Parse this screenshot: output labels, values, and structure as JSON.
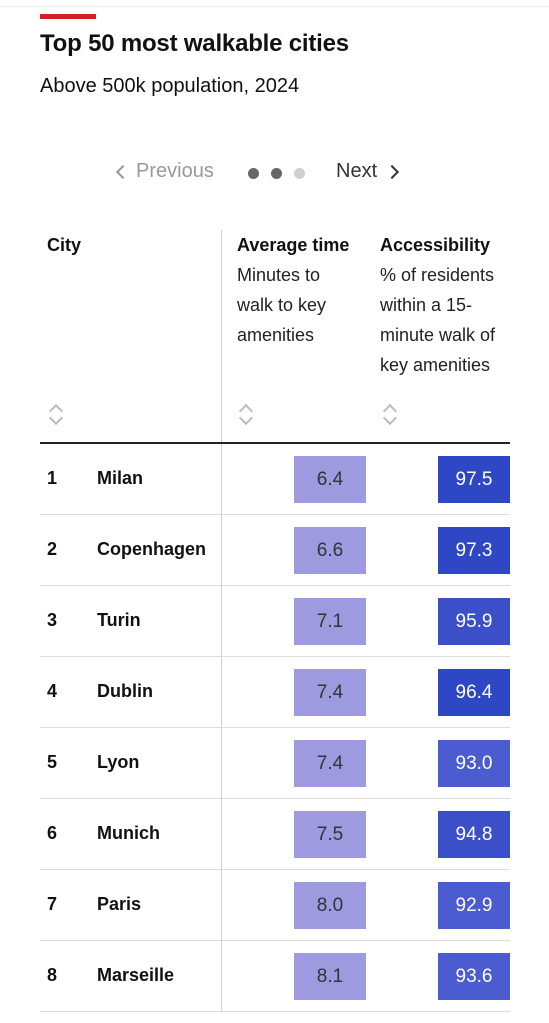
{
  "colors": {
    "accent": "#d81f26",
    "time_fill": "#9e9ae0",
    "acc_fill_high": "#2e47c4",
    "acc_fill_mid": "#3b4fc9",
    "acc_fill_low": "#4b5bd0"
  },
  "page": {
    "title": "Top 50 most walkable cities",
    "subtitle": "Above 500k population, 2024"
  },
  "pager": {
    "prev_label": "Previous",
    "next_label": "Next",
    "pages": 3,
    "current_page": 2
  },
  "icons": {
    "prev": "chevron-left-icon",
    "next": "chevron-right-icon",
    "sort": "sort-updown-icon"
  },
  "table": {
    "columns": [
      {
        "title": "City",
        "desc": []
      },
      {
        "title": "Average time",
        "desc": [
          "Minutes to",
          "walk to key",
          "amenities"
        ]
      },
      {
        "title": "Accessibility",
        "desc": [
          "% of residents",
          "within a 15-",
          "minute walk of",
          "key amenities"
        ]
      }
    ]
  },
  "chart_data": {
    "type": "table",
    "title": "Top 50 most walkable cities",
    "subtitle": "Above 500k population, 2024",
    "columns": [
      "City",
      "Average time",
      "Accessibility"
    ],
    "rows": [
      {
        "rank": "1",
        "city": "Milan",
        "time": "6.4",
        "access": "97.5"
      },
      {
        "rank": "2",
        "city": "Copenhagen",
        "time": "6.6",
        "access": "97.3"
      },
      {
        "rank": "3",
        "city": "Turin",
        "time": "7.1",
        "access": "95.9"
      },
      {
        "rank": "4",
        "city": "Dublin",
        "time": "7.4",
        "access": "96.4"
      },
      {
        "rank": "5",
        "city": "Lyon",
        "time": "7.4",
        "access": "93.0"
      },
      {
        "rank": "6",
        "city": "Munich",
        "time": "7.5",
        "access": "94.8"
      },
      {
        "rank": "7",
        "city": "Paris",
        "time": "8.0",
        "access": "92.9"
      },
      {
        "rank": "8",
        "city": "Marseille",
        "time": "8.1",
        "access": "93.6"
      }
    ]
  }
}
